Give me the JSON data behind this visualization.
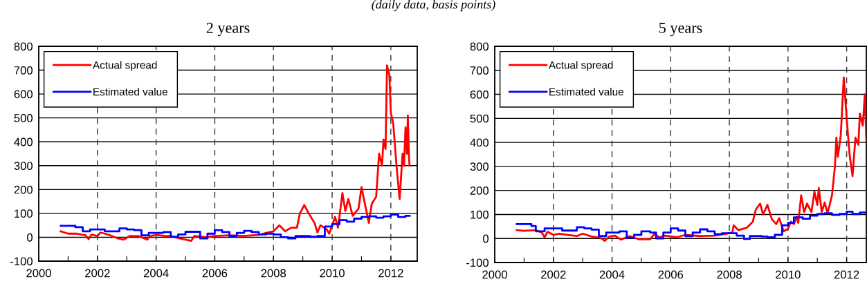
{
  "chart_data": [
    {
      "type": "line",
      "title": "2 years",
      "subtitle": "(daily data, basis points)",
      "xlim": [
        2000,
        2012.9
      ],
      "ylim": [
        -100,
        800
      ],
      "xticks": [
        2000,
        {
          "value": 2001,
          "label": null
        },
        2002,
        {
          "value": 2003,
          "label": null
        },
        2004,
        {
          "value": 2005,
          "label": null
        },
        2006,
        {
          "value": 2007,
          "label": null
        },
        2008,
        {
          "value": 2009,
          "label": null
        },
        2010,
        {
          "value": 2011,
          "label": null
        },
        2012
      ],
      "yticks": [
        -100,
        0,
        100,
        200,
        300,
        400,
        500,
        600,
        700,
        800
      ],
      "grid": true,
      "legend": "top left",
      "series": [
        {
          "name": "Actual spread",
          "color": "#ff0000",
          "x": [
            2000.75,
            2001.0,
            2001.3,
            2001.6,
            2001.7,
            2001.8,
            2002.0,
            2002.1,
            2002.4,
            2002.7,
            2002.9,
            2003.1,
            2003.4,
            2003.7,
            2003.8,
            2004.0,
            2004.3,
            2004.5,
            2004.8,
            2005.2,
            2005.3,
            2005.7,
            2006.0,
            2006.5,
            2007.0,
            2007.5,
            2007.8,
            2008.0,
            2008.2,
            2008.4,
            2008.6,
            2008.8,
            2008.9,
            2009.05,
            2009.2,
            2009.4,
            2009.5,
            2009.6,
            2009.8,
            2009.9,
            2010.1,
            2010.2,
            2010.35,
            2010.45,
            2010.55,
            2010.7,
            2010.9,
            2011.0,
            2011.1,
            2011.25,
            2011.35,
            2011.5,
            2011.6,
            2011.7,
            2011.75,
            2011.82,
            2011.87,
            2011.95,
            2012.0,
            2012.08,
            2012.2,
            2012.3,
            2012.4,
            2012.45,
            2012.5,
            2012.55,
            2012.58,
            2012.62,
            2012.64
          ],
          "values": [
            25,
            15,
            15,
            8,
            -8,
            12,
            5,
            20,
            10,
            -5,
            -10,
            5,
            5,
            -10,
            5,
            10,
            5,
            5,
            -5,
            -15,
            5,
            0,
            5,
            8,
            5,
            10,
            20,
            25,
            50,
            25,
            40,
            40,
            100,
            135,
            100,
            60,
            20,
            50,
            35,
            15,
            85,
            40,
            185,
            110,
            160,
            90,
            120,
            210,
            150,
            60,
            140,
            170,
            350,
            300,
            410,
            370,
            720,
            680,
            520,
            480,
            290,
            160,
            350,
            300,
            460,
            350,
            510,
            330,
            300
          ]
        },
        {
          "name": "Estimated value",
          "type": "step",
          "color": "#0000ff",
          "x": [
            2000.75,
            2001.25,
            2001.5,
            2001.75,
            2002.25,
            2002.75,
            2003.0,
            2003.25,
            2003.5,
            2003.75,
            2004.25,
            2004.5,
            2004.75,
            2005.0,
            2005.5,
            2005.75,
            2006.0,
            2006.25,
            2006.5,
            2006.75,
            2007.0,
            2007.25,
            2007.5,
            2007.75,
            2008.0,
            2008.25,
            2008.5,
            2008.75,
            2009.25,
            2009.5,
            2009.75,
            2010.0,
            2010.25,
            2010.5,
            2010.75,
            2011.0,
            2011.25,
            2011.5,
            2011.75,
            2012.0,
            2012.25,
            2012.5,
            2012.64
          ],
          "values": [
            48,
            42,
            25,
            33,
            25,
            37,
            33,
            30,
            8,
            18,
            22,
            2,
            12,
            23,
            -5,
            15,
            30,
            22,
            5,
            18,
            27,
            22,
            12,
            15,
            12,
            0,
            -5,
            5,
            2,
            5,
            45,
            55,
            72,
            65,
            78,
            85,
            88,
            82,
            88,
            95,
            85,
            90,
            90
          ]
        }
      ]
    },
    {
      "type": "line",
      "title": "5 years",
      "xlim": [
        2000,
        2012.67
      ],
      "ylim": [
        -100,
        800
      ],
      "xticks": [
        2000,
        {
          "value": 2001,
          "label": null
        },
        2002,
        {
          "value": 2003,
          "label": null
        },
        2004,
        {
          "value": 2005,
          "label": null
        },
        2006,
        {
          "value": 2007,
          "label": null
        },
        2008,
        {
          "value": 2009,
          "label": null
        },
        2010,
        {
          "value": 2011,
          "label": null
        },
        2012
      ],
      "yticks": [
        -100,
        0,
        100,
        200,
        300,
        400,
        500,
        600,
        700,
        800
      ],
      "grid": true,
      "legend": "top left",
      "series": [
        {
          "name": "Actual spread",
          "color": "#ff0000",
          "x": [
            2000.75,
            2001.0,
            2001.4,
            2001.6,
            2001.7,
            2001.8,
            2002.0,
            2002.2,
            2002.5,
            2002.8,
            2003.0,
            2003.3,
            2003.6,
            2003.75,
            2003.9,
            2004.1,
            2004.3,
            2004.6,
            2004.9,
            2005.3,
            2005.45,
            2005.6,
            2005.8,
            2006.2,
            2006.5,
            2007.0,
            2007.5,
            2007.9,
            2008.1,
            2008.15,
            2008.3,
            2008.6,
            2008.8,
            2008.9,
            2009.05,
            2009.15,
            2009.3,
            2009.45,
            2009.6,
            2009.7,
            2009.85,
            2010.0,
            2010.1,
            2010.2,
            2010.3,
            2010.35,
            2010.45,
            2010.55,
            2010.65,
            2010.8,
            2010.9,
            2011.0,
            2011.05,
            2011.15,
            2011.25,
            2011.35,
            2011.5,
            2011.6,
            2011.65,
            2011.7,
            2011.8,
            2011.9,
            2011.95,
            2012.0,
            2012.1,
            2012.2,
            2012.3,
            2012.4,
            2012.45,
            2012.55,
            2012.62,
            2012.67
          ],
          "values": [
            35,
            32,
            35,
            25,
            5,
            28,
            15,
            20,
            15,
            10,
            20,
            8,
            3,
            -10,
            8,
            12,
            -5,
            10,
            -3,
            -3,
            20,
            5,
            12,
            5,
            15,
            10,
            12,
            20,
            25,
            55,
            35,
            45,
            70,
            120,
            145,
            100,
            140,
            80,
            60,
            85,
            30,
            40,
            70,
            60,
            90,
            65,
            180,
            110,
            145,
            110,
            195,
            140,
            210,
            110,
            150,
            105,
            180,
            300,
            420,
            340,
            430,
            670,
            590,
            500,
            350,
            260,
            420,
            390,
            520,
            470,
            600,
            410
          ]
        },
        {
          "name": "Estimated value",
          "type": "step",
          "color": "#0000ff",
          "x": [
            2000.75,
            2001.25,
            2001.4,
            2001.7,
            2002.3,
            2002.8,
            2003.05,
            2003.3,
            2003.55,
            2003.8,
            2004.25,
            2004.5,
            2004.75,
            2005.0,
            2005.3,
            2005.5,
            2005.75,
            2006.0,
            2006.25,
            2006.5,
            2006.75,
            2007.0,
            2007.25,
            2007.5,
            2007.75,
            2008.0,
            2008.25,
            2008.5,
            2008.7,
            2009.1,
            2009.3,
            2009.55,
            2009.8,
            2010.0,
            2010.2,
            2010.5,
            2010.75,
            2011.0,
            2011.25,
            2011.5,
            2011.75,
            2012.0,
            2012.2,
            2012.45,
            2012.67
          ],
          "values": [
            60,
            52,
            30,
            42,
            33,
            47,
            42,
            37,
            10,
            25,
            30,
            3,
            15,
            30,
            25,
            0,
            25,
            42,
            33,
            10,
            25,
            38,
            30,
            18,
            22,
            22,
            12,
            -2,
            10,
            8,
            5,
            15,
            55,
            65,
            88,
            82,
            95,
            102,
            105,
            98,
            102,
            112,
            102,
            108,
            108
          ]
        }
      ]
    }
  ]
}
